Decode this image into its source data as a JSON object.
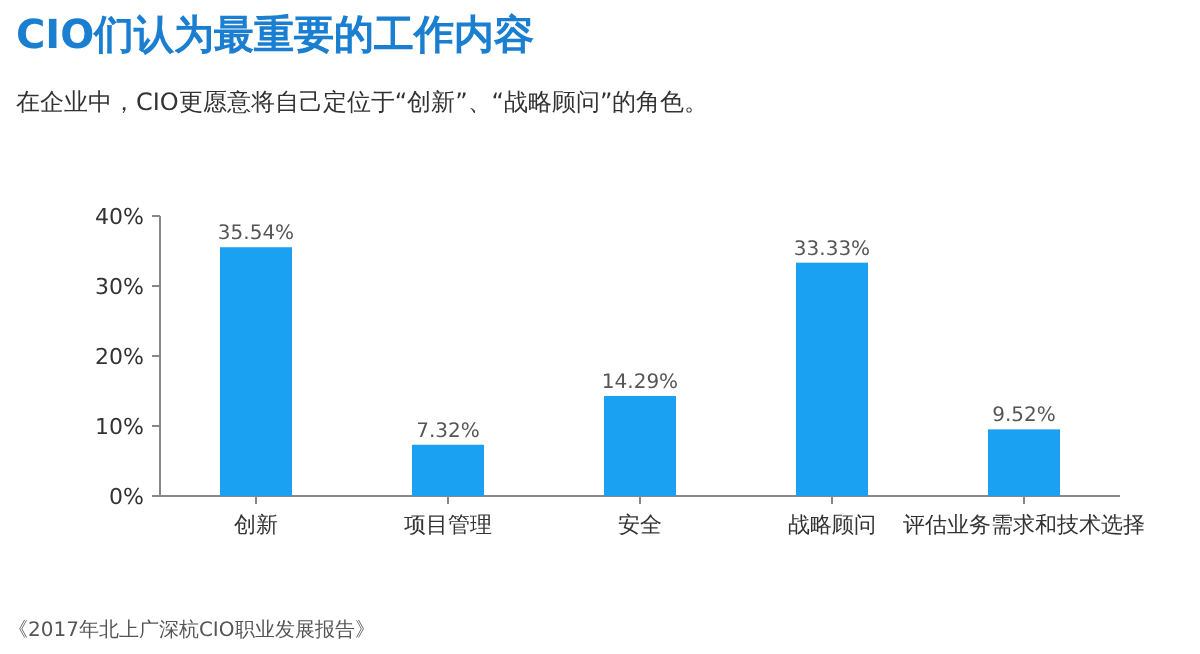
{
  "chart_data": {
    "type": "bar",
    "title": "CIO们认为最重要的工作内容",
    "subtitle": "在企业中，CIO更愿意将自己定位于“创新”、“战略顾问”的角色。",
    "categories": [
      "创新",
      "项目管理",
      "安全",
      "战略顾问",
      "评估业务需求和技术选择"
    ],
    "values": [
      35.54,
      7.32,
      14.29,
      33.33,
      9.52
    ],
    "value_labels": [
      "35.54%",
      "7.32%",
      "14.29%",
      "33.33%",
      "9.52%"
    ],
    "color": "#1aa1f2",
    "ylim": [
      0,
      40
    ],
    "yticks": [
      {
        "value": 0,
        "label": "0%"
      },
      {
        "value": 10,
        "label": "10%"
      },
      {
        "value": 20,
        "label": "20%"
      },
      {
        "value": 30,
        "label": "30%"
      },
      {
        "value": 40,
        "label": "40%"
      }
    ],
    "annotations": [
      "《2017年北上广深杭CIO职业发展报告》"
    ]
  }
}
